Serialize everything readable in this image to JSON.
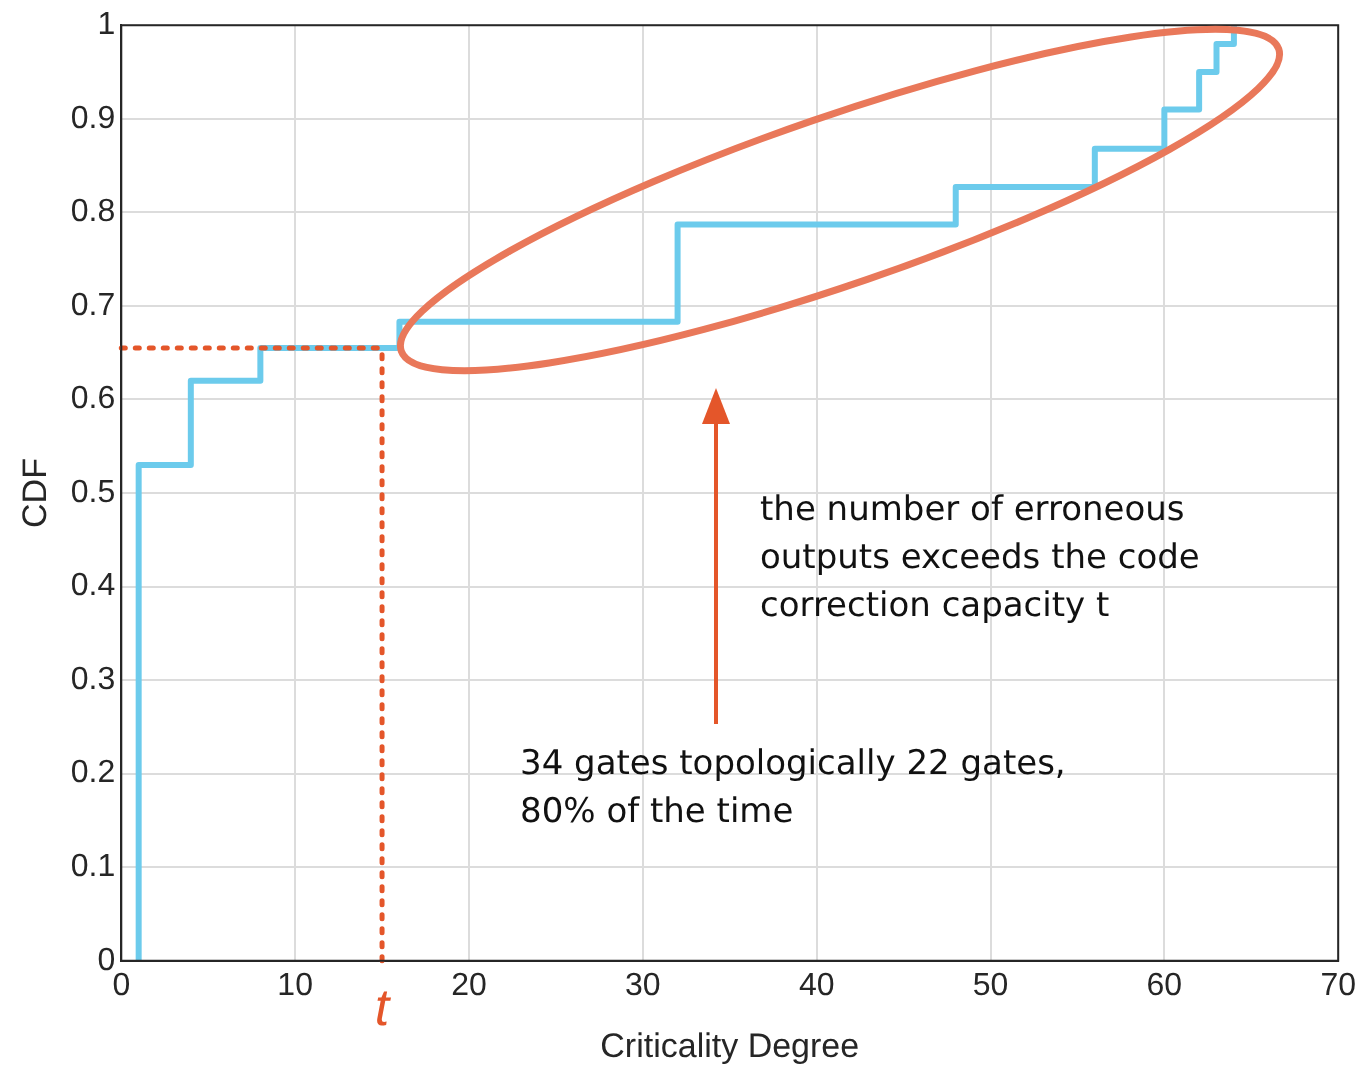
{
  "chart_data": {
    "type": "step",
    "xlabel": "Criticality Degree",
    "ylabel": "CDF",
    "x": [
      1,
      1,
      4,
      8,
      16,
      32,
      48,
      56,
      60,
      62,
      63,
      64
    ],
    "series": [
      {
        "color": "#6ccbec",
        "values": [
          0,
          0.53,
          0.62,
          0.655,
          0.683,
          0.787,
          0.827,
          0.868,
          0.91,
          0.95,
          0.98,
          1
        ]
      }
    ],
    "xlim": [
      0,
      70
    ],
    "xticks": [
      0,
      10,
      20,
      30,
      40,
      50,
      60,
      70
    ],
    "ylim": [
      0,
      1
    ],
    "yticks": [
      0,
      0.1,
      0.2,
      0.3,
      0.4,
      0.5,
      0.6,
      0.7,
      0.8,
      0.9,
      1
    ],
    "grid": true,
    "legend": false,
    "line_style": "solid",
    "marker": "none",
    "ref_lines": [
      {
        "axis": "x",
        "value": 15,
        "label": "t",
        "color": "#e4562a",
        "line_style": "dotted"
      },
      {
        "axis": "y",
        "value": 0.655,
        "color": "#e4562a",
        "line_style": "dotted"
      }
    ],
    "annotations": [
      "the number of erroneous outputs exceeds the code correction capacity t",
      "34 gates topologically 22 gates, 80% of the time"
    ]
  }
}
